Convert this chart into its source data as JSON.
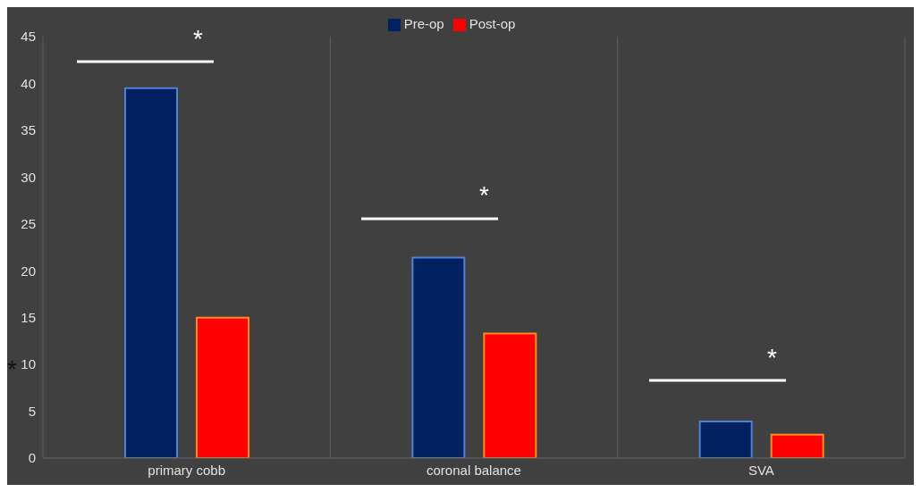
{
  "chart_data": {
    "type": "bar",
    "categories": [
      "primary cobb",
      "coronal balance",
      "SVA"
    ],
    "series": [
      {
        "name": "Pre-op",
        "color": "#002060",
        "values": [
          39.5,
          21.4,
          3.9
        ]
      },
      {
        "name": "Post-op",
        "color": "#ff0000",
        "values": [
          15,
          13.3,
          2.5
        ]
      }
    ],
    "ylim": [
      0,
      45
    ],
    "yticks": [
      0,
      5,
      10,
      15,
      20,
      25,
      30,
      35,
      40,
      45
    ],
    "grid": "x",
    "legend": "top",
    "annotations": [
      "*",
      "*",
      "*",
      "*"
    ]
  }
}
